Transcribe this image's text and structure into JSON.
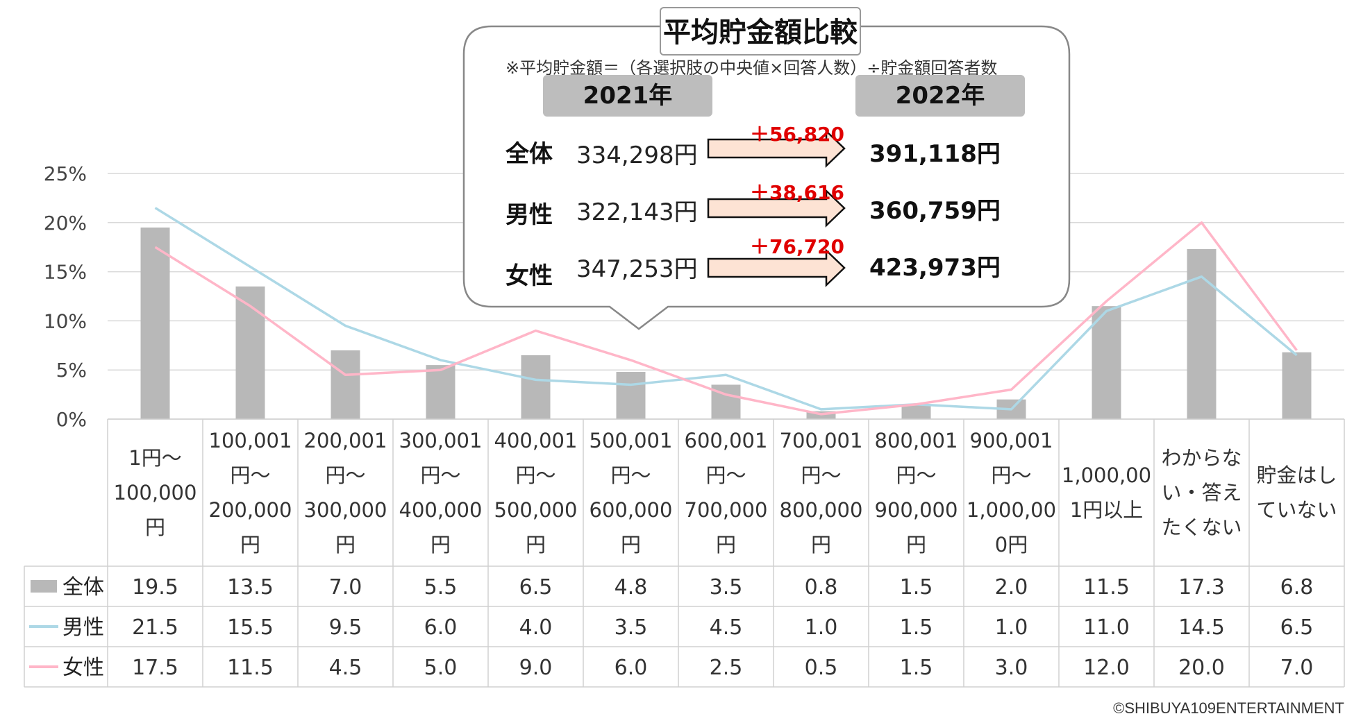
{
  "chart_data": {
    "type": "bar",
    "ylim": [
      0,
      25
    ],
    "yticks": [
      "0%",
      "5%",
      "10%",
      "15%",
      "20%",
      "25%"
    ],
    "grid": true,
    "categories": [
      [
        "1円～",
        "100,000",
        "円"
      ],
      [
        "100,001",
        "円～",
        "200,000",
        "円"
      ],
      [
        "200,001",
        "円～",
        "300,000",
        "円"
      ],
      [
        "300,001",
        "円～",
        "400,000",
        "円"
      ],
      [
        "400,001",
        "円～",
        "500,000",
        "円"
      ],
      [
        "500,001",
        "円～",
        "600,000",
        "円"
      ],
      [
        "600,001",
        "円～",
        "700,000",
        "円"
      ],
      [
        "700,001",
        "円～",
        "800,000",
        "円"
      ],
      [
        "800,001",
        "円～",
        "900,000",
        "円"
      ],
      [
        "900,001",
        "円～",
        "1,000,00",
        "0円"
      ],
      [
        "1,000,00",
        "1円以上"
      ],
      [
        "わからな",
        "い・答え",
        "たくない"
      ],
      [
        "貯金はし",
        "ていない"
      ]
    ],
    "series": [
      {
        "name": "全体",
        "kind": "bar",
        "color": "#b8b8b8",
        "values": [
          19.5,
          13.5,
          7.0,
          5.5,
          6.5,
          4.8,
          3.5,
          0.8,
          1.5,
          2.0,
          11.5,
          17.3,
          6.8
        ]
      },
      {
        "name": "男性",
        "kind": "line",
        "color": "#add8e6",
        "values": [
          21.5,
          15.5,
          9.5,
          6.0,
          4.0,
          3.5,
          4.5,
          1.0,
          1.5,
          1.0,
          11.0,
          14.5,
          6.5
        ]
      },
      {
        "name": "女性",
        "kind": "line",
        "color": "#ffb6c8",
        "values": [
          17.5,
          11.5,
          4.5,
          5.0,
          9.0,
          6.0,
          2.5,
          0.5,
          1.5,
          3.0,
          12.0,
          20.0,
          7.0
        ]
      }
    ]
  },
  "callout": {
    "title": "平均貯金額比較",
    "note": "※平均貯金額＝（各選択肢の中央値×回答人数）÷貯金額回答者数",
    "year_before": "2021年",
    "year_after": "2022年",
    "rows": [
      {
        "label": "全体",
        "before": "334,298円",
        "diff": "＋56,820",
        "after": "391,118円"
      },
      {
        "label": "男性",
        "before": "322,143円",
        "diff": "＋38,616",
        "after": "360,759円"
      },
      {
        "label": "女性",
        "before": "347,253円",
        "diff": "＋76,720",
        "after": "423,973円"
      }
    ]
  },
  "copyright": "©SHIBUYA109ENTERTAINMENT"
}
